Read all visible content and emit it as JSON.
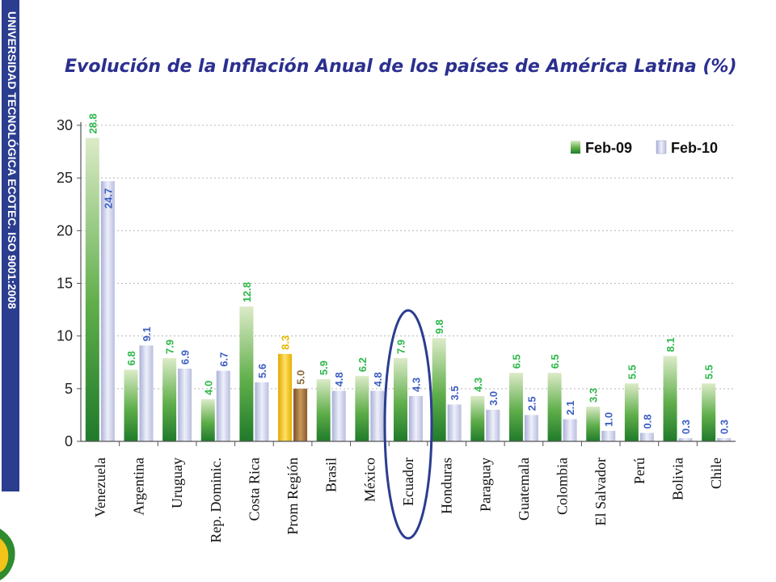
{
  "sidebar": {
    "text": "UNIVERSIDAD TECNOLÓGICA ECOTEC. ISO 9001:2008"
  },
  "colors": {
    "banner": "#2b3d8f",
    "title": "#2b2f8f",
    "series1_bar": "#2f8f2f",
    "series2_bar": "#c9cde8",
    "highlight_bar1": "#f2c318",
    "highlight_bar2": "#9a6a38",
    "label1": "#2eb84a",
    "label2": "#3d5fc4",
    "ellipse": "#2b3d8f"
  },
  "chart_data": {
    "type": "bar",
    "title": "Evolución de la Inflación Anual de los países de América Latina (%)",
    "xlabel": "",
    "ylabel": "",
    "ylim": [
      0,
      30
    ],
    "yticks": [
      0,
      5,
      10,
      15,
      20,
      25,
      30
    ],
    "grid": true,
    "legend_position": "top-right",
    "categories": [
      "Venezuela",
      "Argentina",
      "Uruguay",
      "Rep. Dominic.",
      "Costa Rica",
      "Prom Región",
      "Brasil",
      "México",
      "Ecuador",
      "Honduras",
      "Paraguay",
      "Guatemala",
      "Colombia",
      "El Salvador",
      "Perú",
      "Bolivia",
      "Chile"
    ],
    "series": [
      {
        "name": "Feb-09",
        "values": [
          28.8,
          6.8,
          7.9,
          4.0,
          12.8,
          8.3,
          5.9,
          6.2,
          7.9,
          9.8,
          4.3,
          6.5,
          6.5,
          3.3,
          5.5,
          8.1,
          5.5
        ],
        "labels": [
          "28.8",
          "6.8",
          "7.9",
          "4.0",
          "12.8",
          "8.3",
          "5.9",
          "6.2",
          "7.9",
          "9.8",
          "4.3",
          "6.5",
          "6.5",
          "3.3",
          "5.5",
          "8.1",
          "5.5"
        ]
      },
      {
        "name": "Feb-10",
        "values": [
          24.7,
          9.1,
          6.9,
          6.7,
          5.6,
          5.0,
          4.8,
          4.8,
          4.3,
          3.5,
          3.0,
          2.5,
          2.1,
          1.0,
          0.8,
          0.3,
          0.3
        ],
        "labels": [
          "24.7",
          "9.1",
          "6.9",
          "6.7",
          "5.6",
          "5.0",
          "4.8",
          "4.8",
          "4.3",
          "3.5",
          "3.0",
          "2.5",
          "2.1",
          "1.0",
          "0.8",
          "0.3",
          "0.3"
        ]
      }
    ],
    "highlighted_category": "Prom Región",
    "circled_category": "Ecuador"
  }
}
